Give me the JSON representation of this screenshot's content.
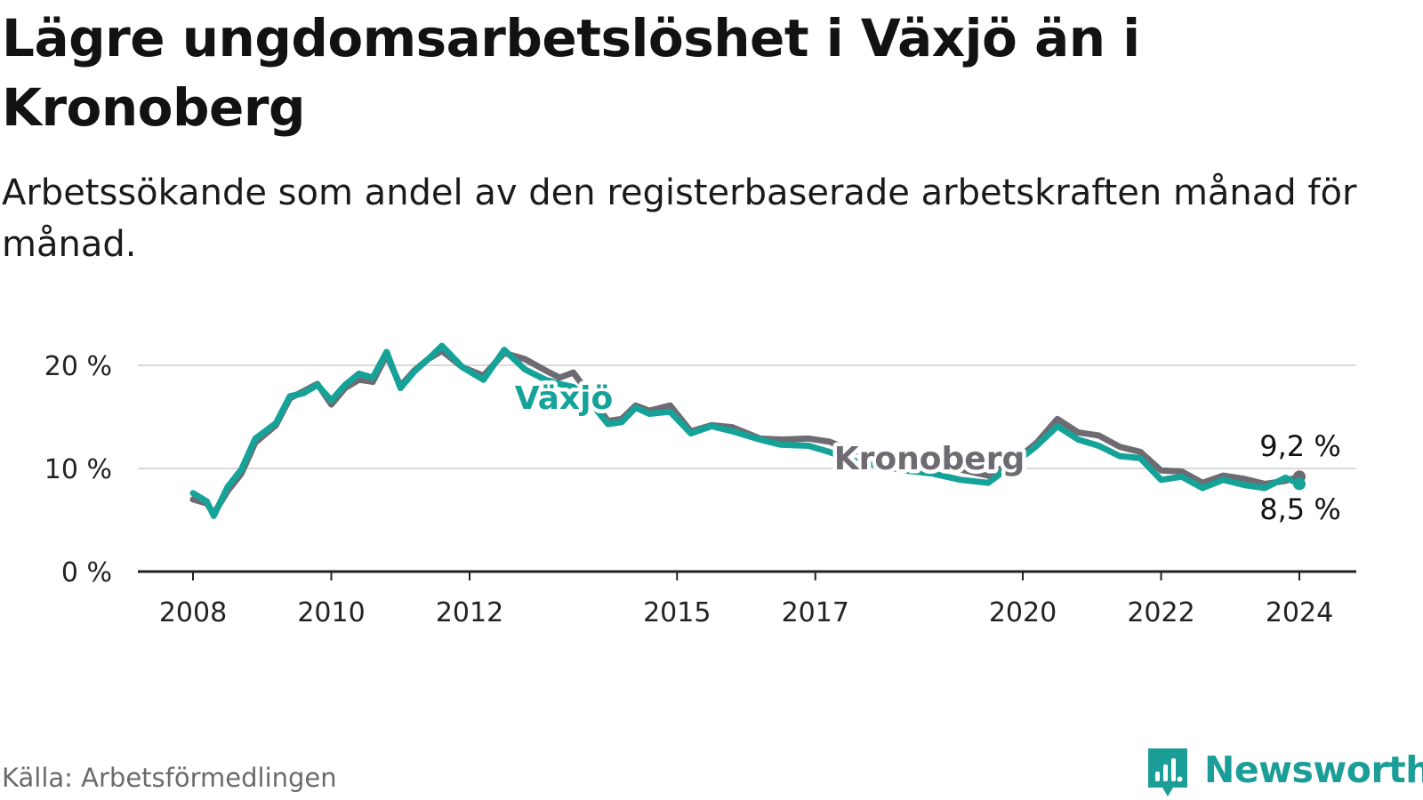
{
  "title": "Lägre ungdomsarbetslöshet i Växjö än i Kronoberg",
  "subtitle": "Arbetssökande som andel av den registerbaserade arbetskraften månad för månad.",
  "source": "Källa: Arbetsförmedlingen",
  "brand": "Newsworthy",
  "colors": {
    "vaxjo": "#15a399",
    "kronoberg": "#6e6c72",
    "grid": "#dadada",
    "axis": "#222222"
  },
  "chart_data": {
    "type": "line",
    "title": "Lägre ungdomsarbetslöshet i Växjö än i Kronoberg",
    "xlabel": "",
    "ylabel": "",
    "ylim": [
      0,
      22
    ],
    "xlim": [
      2008,
      2024
    ],
    "y_ticks": [
      0,
      10,
      20
    ],
    "y_tick_labels": [
      "0 %",
      "10 %",
      "20 %"
    ],
    "x_ticks": [
      2008,
      2010,
      2012,
      2015,
      2017,
      2020,
      2022,
      2024
    ],
    "x_tick_labels": [
      "2008",
      "2010",
      "2012",
      "2015",
      "2017",
      "2020",
      "2022",
      "2024"
    ],
    "grid": true,
    "series": [
      {
        "name": "Kronoberg",
        "label": "Kronoberg",
        "end_label": "9,2 %",
        "x": [
          2008.0,
          2008.2,
          2008.3,
          2008.5,
          2008.7,
          2008.9,
          2009.2,
          2009.4,
          2009.6,
          2009.8,
          2010.0,
          2010.2,
          2010.4,
          2010.6,
          2010.8,
          2011.0,
          2011.2,
          2011.4,
          2011.6,
          2011.9,
          2012.2,
          2012.5,
          2012.8,
          2013.1,
          2013.3,
          2013.5,
          2013.7,
          2014.0,
          2014.2,
          2014.4,
          2014.6,
          2014.9,
          2015.2,
          2015.5,
          2015.8,
          2016.2,
          2016.5,
          2016.9,
          2017.2,
          2017.5,
          2017.9,
          2018.3,
          2018.7,
          2019.1,
          2019.5,
          2019.9,
          2020.2,
          2020.5,
          2020.8,
          2021.1,
          2021.4,
          2021.7,
          2022.0,
          2022.3,
          2022.6,
          2022.9,
          2023.2,
          2023.5,
          2023.8,
          2024.0
        ],
        "values": [
          7.0,
          6.6,
          5.6,
          7.8,
          9.5,
          12.5,
          14.2,
          16.8,
          17.5,
          18.2,
          16.2,
          17.8,
          18.6,
          18.4,
          21.0,
          18.0,
          19.5,
          20.6,
          21.4,
          19.8,
          19.0,
          21.2,
          20.6,
          19.5,
          18.8,
          19.3,
          17.5,
          14.6,
          14.8,
          16.1,
          15.6,
          16.1,
          13.6,
          14.2,
          14.0,
          12.9,
          12.8,
          12.9,
          12.6,
          11.8,
          11.2,
          10.6,
          10.2,
          9.9,
          9.3,
          10.8,
          12.5,
          14.8,
          13.5,
          13.2,
          12.1,
          11.6,
          9.8,
          9.7,
          8.6,
          9.3,
          9.0,
          8.5,
          8.8,
          9.2
        ]
      },
      {
        "name": "Växjö",
        "label": "Växjö",
        "end_label": "8,5 %",
        "x": [
          2008.0,
          2008.2,
          2008.3,
          2008.5,
          2008.7,
          2008.9,
          2009.2,
          2009.4,
          2009.6,
          2009.8,
          2010.0,
          2010.2,
          2010.4,
          2010.6,
          2010.8,
          2011.0,
          2011.2,
          2011.4,
          2011.6,
          2011.9,
          2012.2,
          2012.5,
          2012.8,
          2013.1,
          2013.3,
          2013.5,
          2013.7,
          2014.0,
          2014.2,
          2014.4,
          2014.6,
          2014.9,
          2015.2,
          2015.5,
          2015.8,
          2016.2,
          2016.5,
          2016.9,
          2017.2,
          2017.5,
          2017.9,
          2018.3,
          2018.7,
          2019.1,
          2019.5,
          2019.9,
          2020.2,
          2020.5,
          2020.8,
          2021.1,
          2021.4,
          2021.7,
          2022.0,
          2022.3,
          2022.6,
          2022.9,
          2023.2,
          2023.5,
          2023.8,
          2024.0
        ],
        "values": [
          7.6,
          6.8,
          5.4,
          8.2,
          9.9,
          12.9,
          14.4,
          17.0,
          17.3,
          18.1,
          16.6,
          18.1,
          19.2,
          18.8,
          21.3,
          17.8,
          19.4,
          20.6,
          21.9,
          19.8,
          18.6,
          21.5,
          19.6,
          18.6,
          18.2,
          17.9,
          16.8,
          14.3,
          14.5,
          15.9,
          15.3,
          15.5,
          13.4,
          14.1,
          13.6,
          12.8,
          12.3,
          12.2,
          11.6,
          10.8,
          10.3,
          9.8,
          9.5,
          8.9,
          8.6,
          10.6,
          12.2,
          14.1,
          12.8,
          12.2,
          11.2,
          11.0,
          8.9,
          9.2,
          8.1,
          8.9,
          8.4,
          8.1,
          9.1,
          8.5
        ]
      }
    ]
  }
}
